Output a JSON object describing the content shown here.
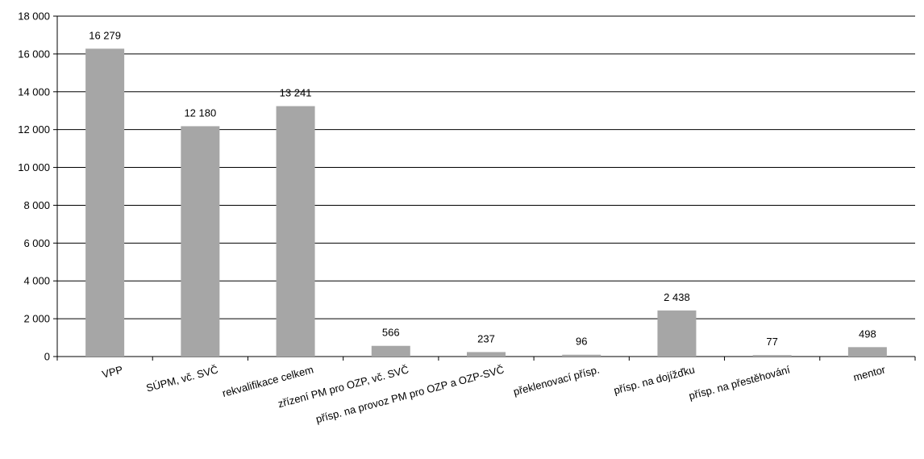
{
  "chart_data": {
    "type": "bar",
    "title": "",
    "xlabel": "",
    "ylabel": "",
    "ylim": [
      0,
      18000
    ],
    "yticks": [
      0,
      2000,
      4000,
      6000,
      8000,
      10000,
      12000,
      14000,
      16000,
      18000
    ],
    "ytick_labels": [
      "0",
      "2 000",
      "4 000",
      "6 000",
      "8 000",
      "10 000",
      "12 000",
      "14 000",
      "16 000",
      "18 000"
    ],
    "grid": true,
    "legend": "none",
    "bar_color": "#a6a6a6",
    "categories": [
      "VPP",
      "SÚPM, vč. SVČ",
      "rekvalifikace celkem",
      "zřízení PM pro OZP, vč. SVČ",
      "přísp. na provoz PM pro OZP a OZP-SVČ",
      "překlenovací přísp.",
      "přísp. na dojížďku",
      "přísp. na přestěhování",
      "mentor"
    ],
    "values": [
      16279,
      12180,
      13241,
      566,
      237,
      96,
      2438,
      77,
      498
    ],
    "value_labels": [
      "16 279",
      "12 180",
      "13 241",
      "566",
      "237",
      "96",
      "2 438",
      "77",
      "498"
    ]
  }
}
